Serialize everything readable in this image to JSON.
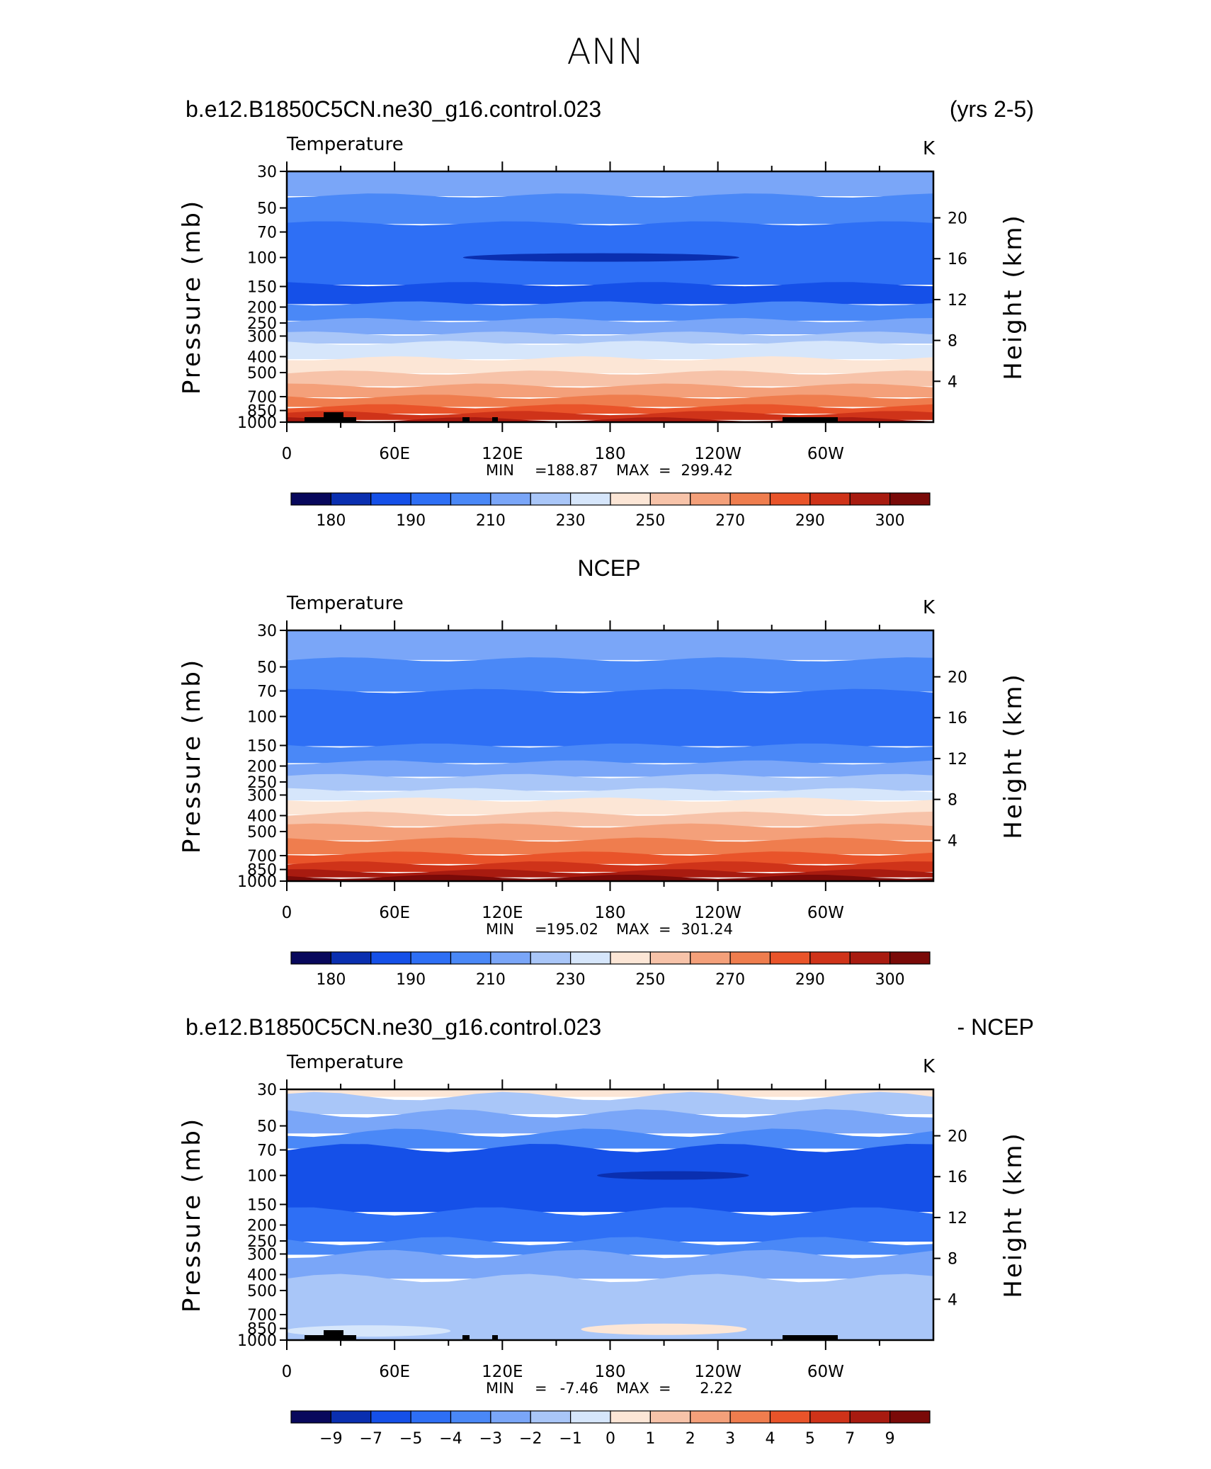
{
  "figure": {
    "title": "ANN"
  },
  "colors": {
    "temperature_palette": [
      "#08085c",
      "#0a2fb0",
      "#1550e8",
      "#2e6ff5",
      "#4a88f7",
      "#7aa6f8",
      "#a9c6f8",
      "#d6e6fb",
      "#fce6d6",
      "#f7c3a9",
      "#f4a07a",
      "#ef7d4e",
      "#e9542a",
      "#cf3319",
      "#a81b10",
      "#7a0a08"
    ],
    "difference_palette": [
      "#08085c",
      "#0a2fb0",
      "#1550e8",
      "#2e6ff5",
      "#4a88f7",
      "#7aa6f8",
      "#a9c6f8",
      "#d6e6fb",
      "#fce6d6",
      "#f7c3a9",
      "#f4a07a",
      "#ef7d4e",
      "#e9542a",
      "#cf3319",
      "#a81b10",
      "#7a0a08"
    ],
    "land_mask": "#000000"
  },
  "chart_data": [
    {
      "type": "heatmap",
      "case_title": "b.e12.B1850C5CN.ne30_g16.control.023",
      "case_title_right": "(yrs 2-5)",
      "variable": "Temperature",
      "units": "K",
      "ylabel": "Pressure (mb)",
      "ylabel_right": "Height (km)",
      "x_ticks": [
        "0",
        "60E",
        "120E",
        "180",
        "120W",
        "60W"
      ],
      "x_tick_lon": [
        0,
        60,
        120,
        180,
        240,
        300
      ],
      "xlim_lon": [
        0,
        360
      ],
      "y_ticks": [
        "30",
        "50",
        "70",
        "100",
        "150",
        "200",
        "250",
        "300",
        "400",
        "500",
        "700",
        "850",
        "1000"
      ],
      "y_tick_p": [
        30,
        50,
        70,
        100,
        150,
        200,
        250,
        300,
        400,
        500,
        700,
        850,
        1000
      ],
      "right_ticks": [
        "20",
        "16",
        "12",
        "8",
        "4"
      ],
      "right_tick_km": [
        20,
        16,
        12,
        8,
        4
      ],
      "min_label": "MIN",
      "min_value": "188.87",
      "max_label": "MAX",
      "max_value": "299.42",
      "colorbar_labels": [
        "180",
        "190",
        "210",
        "230",
        "250",
        "270",
        "290",
        "300"
      ],
      "colorbar_label_positions": [
        1,
        3,
        5,
        7,
        9,
        11,
        13,
        15
      ],
      "band_pressures": [
        30,
        42,
        62,
        145,
        190,
        240,
        290,
        330,
        410,
        500,
        600,
        700,
        800,
        880,
        960,
        1000
      ],
      "band_color_index": [
        5,
        4,
        3,
        2,
        4,
        5,
        6,
        7,
        8,
        9,
        10,
        11,
        12,
        13,
        14
      ],
      "min_blob": {
        "lon": 175,
        "p": 100,
        "width_lon": 100,
        "color_index": 1
      }
    },
    {
      "type": "heatmap",
      "case_title": "NCEP",
      "variable": "Temperature",
      "units": "K",
      "ylabel": "Pressure (mb)",
      "ylabel_right": "Height (km)",
      "x_ticks": [
        "0",
        "60E",
        "120E",
        "180",
        "120W",
        "60W"
      ],
      "x_tick_lon": [
        0,
        60,
        120,
        180,
        240,
        300
      ],
      "xlim_lon": [
        0,
        360
      ],
      "y_ticks": [
        "30",
        "50",
        "70",
        "100",
        "150",
        "200",
        "250",
        "300",
        "400",
        "500",
        "700",
        "850",
        "1000"
      ],
      "y_tick_p": [
        30,
        50,
        70,
        100,
        150,
        200,
        250,
        300,
        400,
        500,
        700,
        850,
        1000
      ],
      "right_ticks": [
        "20",
        "16",
        "12",
        "8",
        "4"
      ],
      "right_tick_km": [
        20,
        16,
        12,
        8,
        4
      ],
      "min_label": "MIN",
      "min_value": "195.02",
      "max_label": "MAX",
      "max_value": "301.24",
      "colorbar_labels": [
        "180",
        "190",
        "210",
        "230",
        "250",
        "270",
        "290",
        "300"
      ],
      "colorbar_label_positions": [
        1,
        3,
        5,
        7,
        9,
        11,
        13,
        15
      ],
      "band_pressures": [
        30,
        45,
        70,
        150,
        190,
        230,
        280,
        320,
        390,
        460,
        560,
        680,
        780,
        870,
        940,
        1000
      ],
      "band_color_index": [
        5,
        4,
        3,
        4,
        5,
        6,
        7,
        8,
        9,
        10,
        11,
        12,
        13,
        14,
        15
      ]
    },
    {
      "type": "heatmap",
      "case_title": "b.e12.B1850C5CN.ne30_g16.control.023",
      "case_title_right": "- NCEP",
      "variable": "Temperature",
      "units": "K",
      "ylabel": "Pressure (mb)",
      "ylabel_right": "Height (km)",
      "x_ticks": [
        "0",
        "60E",
        "120E",
        "180",
        "120W",
        "60W"
      ],
      "x_tick_lon": [
        0,
        60,
        120,
        180,
        240,
        300
      ],
      "xlim_lon": [
        0,
        360
      ],
      "y_ticks": [
        "30",
        "50",
        "70",
        "100",
        "150",
        "200",
        "250",
        "300",
        "400",
        "500",
        "700",
        "850",
        "1000"
      ],
      "y_tick_p": [
        30,
        50,
        70,
        100,
        150,
        200,
        250,
        300,
        400,
        500,
        700,
        850,
        1000
      ],
      "right_ticks": [
        "20",
        "16",
        "12",
        "8",
        "4"
      ],
      "right_tick_km": [
        20,
        16,
        12,
        8,
        4
      ],
      "min_label": "MIN",
      "min_value": "-7.46",
      "max_label": "MAX",
      "max_value": "2.22",
      "colorbar_labels": [
        "−9",
        "−7",
        "−5",
        "−4",
        "−3",
        "−2",
        "−1",
        "0",
        "1",
        "2",
        "3",
        "4",
        "5",
        "7",
        "9"
      ],
      "colorbar_label_positions": [
        1,
        2,
        3,
        4,
        5,
        6,
        7,
        8,
        9,
        10,
        11,
        12,
        13,
        14,
        15
      ],
      "band_pressures": [
        30,
        33,
        42,
        55,
        68,
        165,
        250,
        300,
        420,
        1000
      ],
      "band_color_index": [
        8,
        6,
        5,
        4,
        2,
        3,
        4,
        5,
        6
      ],
      "min_blob": {
        "lon": 215,
        "p": 100,
        "width_lon": 55,
        "color_index": 1
      },
      "warm_blob": {
        "lon": 210,
        "p": 860,
        "width_lon": 60,
        "color_index": 8
      },
      "light_blob": {
        "lon": 45,
        "p": 880,
        "width_lon": 60,
        "color_index": 7
      }
    }
  ]
}
